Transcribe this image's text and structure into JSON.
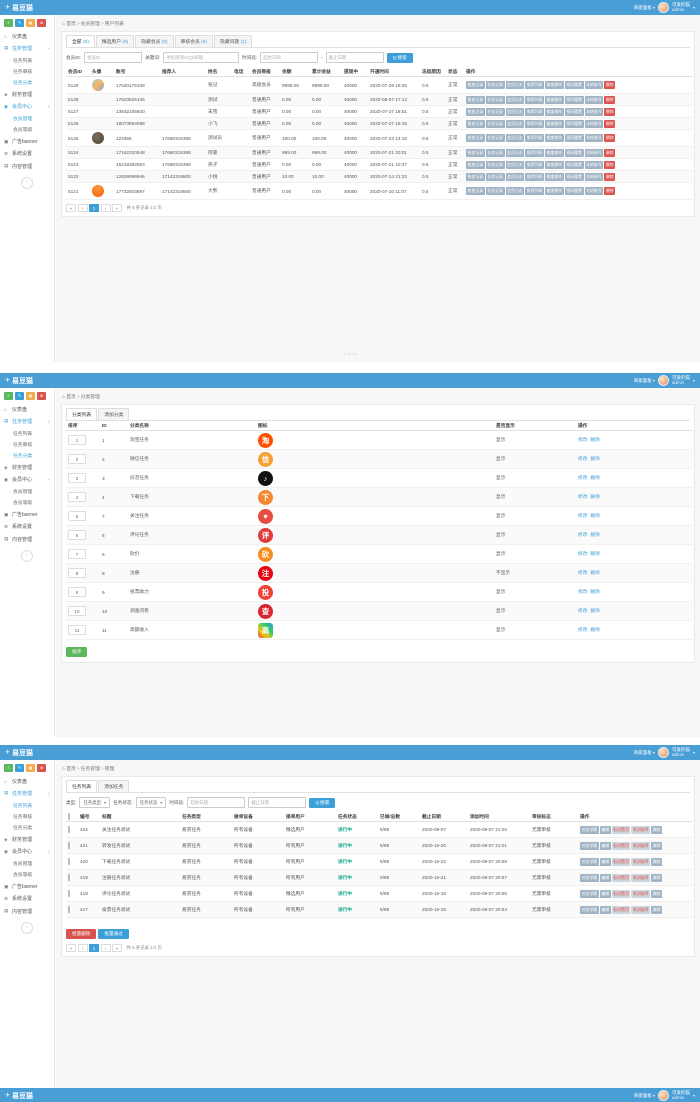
{
  "colors": {
    "navbar": "#4a9ed6",
    "accent_blue": "#3c9fd8",
    "green": "#5cb85c",
    "red": "#d9534f",
    "slate_button": "#9fb3c4",
    "badge_green": "#18a689"
  },
  "navbar": {
    "logo": "易豆猫",
    "logo_icon": "paper-plane-icon",
    "merchant_menu": "商家面板",
    "user_name": "可爱的猫",
    "user_role": "admin"
  },
  "sidebar": {
    "quick_buttons": [
      {
        "name": "menu",
        "glyph": "≡",
        "color": "#5cb85c"
      },
      {
        "name": "edit",
        "glyph": "✎",
        "color": "#3c9fd8"
      },
      {
        "name": "apps",
        "glyph": "▦",
        "color": "#f0ad4e"
      },
      {
        "name": "power",
        "glyph": "⊗",
        "color": "#d9534f"
      }
    ],
    "items": [
      {
        "label": "仪表盘",
        "glyph": "⌂",
        "children": []
      },
      {
        "label": "任务管理",
        "glyph": "▤",
        "children": [
          "任务列表",
          "任务审核",
          "任务分类"
        ]
      },
      {
        "label": "财务管理",
        "glyph": "◈",
        "children": []
      },
      {
        "label": "会员中心",
        "glyph": "◉",
        "children": [
          "会员管理",
          "会员等级"
        ]
      },
      {
        "label": "广告banner",
        "glyph": "▣",
        "children": []
      },
      {
        "label": "系统设置",
        "glyph": "⚙",
        "children": []
      },
      {
        "label": "内容管理",
        "glyph": "▤",
        "children": []
      }
    ],
    "collapse_glyph": "‹"
  },
  "panels": [
    {
      "name": "user-list",
      "breadcrumb": [
        "首页",
        "会员管理",
        "用户列表"
      ],
      "expanded": [
        "任务管理",
        "会员中心"
      ],
      "blue_parents": [
        "任务管理",
        "会员中心"
      ],
      "current_child": "会员管理",
      "also_blue_child": "任务分类",
      "tabs": [
        {
          "label": "全部",
          "count": "(9)",
          "active": true
        },
        {
          "label": "精选用户",
          "count": "(8)",
          "active": false
        },
        {
          "label": "隐藏会员",
          "count": "(0)",
          "active": false
        },
        {
          "label": "审核会员",
          "count": "(9)",
          "active": false
        },
        {
          "label": "隐藏问题",
          "count": "(1)",
          "active": false
        }
      ],
      "filters": {
        "id_label": "会员ID:",
        "id_placeholder": "会员ID",
        "kw_label": "关键词:",
        "kw_placeholder": "手机/昵称/QQ/邮箱",
        "time_label": "时间段:",
        "time_from": "起始日期",
        "time_to": "截止日期",
        "search_label": "搜索",
        "search_icon": "Q"
      },
      "columns": [
        "会员ID",
        "头像",
        "账号",
        "推荐人",
        "姓名",
        "电话",
        "会员等级",
        "余额",
        "累计收益",
        "提现中",
        "开通时间",
        "冻结原因",
        "状态",
        "操作"
      ],
      "actions": [
        "账变记录",
        "任务记录",
        "会员日志",
        "推荐列表",
        "额度操作",
        "密码重置",
        "冻结账号",
        "删除"
      ],
      "rows": [
        {
          "id": "5129",
          "avatar": "colorful",
          "account": "17620175348",
          "referrer": "",
          "name": "张记",
          "phone": "",
          "level": "高级会员",
          "balance": "9999.00",
          "total": "9999.00",
          "withdraw": "40000",
          "time": "2020-07-28 18:45",
          "freeze": "0.5",
          "status": "正常"
        },
        {
          "id": "5128",
          "avatar": "",
          "account": "17623525136",
          "referrer": "",
          "name": "测试",
          "phone": "",
          "level": "普通用户",
          "balance": "0.00",
          "total": "0.00",
          "withdraw": "40000",
          "time": "2020-08-07 17:12",
          "freeze": "0.5",
          "status": "正常"
        },
        {
          "id": "5127",
          "avatar": "",
          "account": "13932105840",
          "referrer": "",
          "name": "末雪",
          "phone": "",
          "level": "普通用户",
          "balance": "0.00",
          "total": "0.00",
          "withdraw": "40000",
          "time": "2020-07-27 18:51",
          "freeze": "0.5",
          "status": "正常"
        },
        {
          "id": "5126",
          "avatar": "",
          "account": "18073894098",
          "referrer": "",
          "name": "小飞",
          "phone": "",
          "level": "普通用户",
          "balance": "0.00",
          "total": "0.00",
          "withdraw": "40000",
          "time": "2020-07-27 18:15",
          "freeze": "0.5",
          "status": "正常"
        },
        {
          "id": "5125",
          "avatar": "dark",
          "account": "123456",
          "referrer": "17680315388",
          "name": "测试员",
          "phone": "",
          "level": "普通用户",
          "balance": "100.00",
          "total": "100.00",
          "withdraw": "40000",
          "time": "2020-07-23 14:15",
          "freeze": "0.5",
          "status": "正常"
        },
        {
          "id": "5124",
          "avatar": "",
          "account": "17162310548",
          "referrer": "17680315388",
          "name": "阿豪",
          "phone": "",
          "level": "普通用户",
          "balance": "999.00",
          "total": "999.00",
          "withdraw": "40000",
          "time": "2020-07-21 20:01",
          "freeze": "0.5",
          "status": "正常"
        },
        {
          "id": "5123",
          "avatar": "",
          "account": "15218382553",
          "referrer": "17680315388",
          "name": "燕子",
          "phone": "",
          "level": "普通用户",
          "balance": "0.00",
          "total": "0.00",
          "withdraw": "40000",
          "time": "2020-07-21 10:37",
          "freeze": "0.5",
          "status": "正常"
        },
        {
          "id": "5122",
          "avatar": "",
          "account": "12629999946",
          "referrer": "17142319500",
          "name": "小悦",
          "phone": "",
          "level": "普通用户",
          "balance": "10.00",
          "total": "10.00",
          "withdraw": "40000",
          "time": "2020-07-14 21:22",
          "freeze": "0.5",
          "status": "正常"
        },
        {
          "id": "5121",
          "avatar": "orange",
          "account": "17732933697",
          "referrer": "17142319500",
          "name": "大熊",
          "phone": "",
          "level": "普通用户",
          "balance": "0.00",
          "total": "0.00",
          "withdraw": "40000",
          "time": "2020-07-10 11:07",
          "freeze": "0.5",
          "status": "正常"
        }
      ],
      "pager": {
        "first": "«",
        "prev": "‹",
        "page": "1",
        "next": "›",
        "last": "»",
        "total": "共 9 条记录 1/1 页"
      },
      "mini_pager": "« ‹ 1 › »"
    },
    {
      "name": "category-list",
      "breadcrumb": [
        "首页",
        "分类管理"
      ],
      "expanded": [
        "任务管理",
        "会员中心"
      ],
      "blue_parents": [
        "任务管理"
      ],
      "current_child": "任务分类",
      "also_blue_child": "",
      "tabs": [
        {
          "label": "分类列表",
          "count": "",
          "active": true
        },
        {
          "label": "添加分类",
          "count": "",
          "active": false
        }
      ],
      "columns": [
        "排序",
        "ID",
        "分类名称",
        "图标",
        "是否显示",
        "操作"
      ],
      "ops": [
        "修改",
        "删除"
      ],
      "rows": [
        {
          "sort": "1",
          "id": "1",
          "name": "淘宝任务",
          "icon": {
            "glyph": "淘",
            "bg": "#ff5000",
            "shape": "circle",
            "sem": "taobao-icon"
          },
          "show": "显示"
        },
        {
          "sort": "2",
          "id": "2",
          "name": "微信任务",
          "icon": {
            "glyph": "信",
            "bg": "#f7a034",
            "shape": "circle",
            "sem": "wechat-icon"
          },
          "show": "显示"
        },
        {
          "sort": "3",
          "id": "3",
          "name": "抖音任务",
          "icon": {
            "glyph": "♪",
            "bg": "#111111",
            "shape": "circle",
            "sem": "douyin-icon"
          },
          "show": "显示"
        },
        {
          "sort": "4",
          "id": "4",
          "name": "下载任务",
          "icon": {
            "glyph": "下",
            "bg": "#f7882f",
            "shape": "circle",
            "sem": "download-app-icon"
          },
          "show": "显示"
        },
        {
          "sort": "5",
          "id": "7",
          "name": "关注任务",
          "icon": {
            "glyph": "♥",
            "bg": "#e54d42",
            "shape": "circle",
            "sem": "follow-icon"
          },
          "show": "显示"
        },
        {
          "sort": "6",
          "id": "5",
          "name": "评论任务",
          "icon": {
            "glyph": "评",
            "bg": "#e03c3c",
            "shape": "circle",
            "sem": "comment-icon"
          },
          "show": "显示"
        },
        {
          "sort": "7",
          "id": "6",
          "name": "砍价",
          "icon": {
            "glyph": "砍",
            "bg": "#f78c1e",
            "shape": "circle",
            "sem": "bargain-icon"
          },
          "show": "显示"
        },
        {
          "sort": "8",
          "id": "8",
          "name": "注册",
          "icon": {
            "glyph": "注",
            "bg": "#e60012",
            "shape": "circle",
            "sem": "register-icon"
          },
          "show": "不显示"
        },
        {
          "sort": "9",
          "id": "9",
          "name": "投票助力",
          "icon": {
            "glyph": "投",
            "bg": "#ef4136",
            "shape": "circle",
            "sem": "vote-icon"
          },
          "show": "显示"
        },
        {
          "sort": "10",
          "id": "10",
          "name": "调查问卷",
          "icon": {
            "glyph": "查",
            "bg": "#d9262c",
            "shape": "circle",
            "sem": "survey-icon"
          },
          "show": "显示"
        },
        {
          "sort": "11",
          "id": "11",
          "name": "高额收入",
          "icon": {
            "glyph": "高",
            "bg": "linear-gradient(45deg,#e74c3c,#f1c40f,#2ecc71,#3498db)",
            "shape": "square",
            "sem": "high-reward-icon"
          },
          "show": "显示"
        }
      ],
      "sort_button": "排序"
    },
    {
      "name": "task-list",
      "breadcrumb": [
        "首页",
        "任务管理",
        "管理"
      ],
      "expanded": [
        "任务管理",
        "会员中心"
      ],
      "blue_parents": [
        "任务管理"
      ],
      "current_child": "任务列表",
      "also_blue_child": "",
      "tabs": [
        {
          "label": "任务列表",
          "count": "",
          "active": true
        },
        {
          "label": "添加任务",
          "count": "",
          "active": false
        }
      ],
      "filters": {
        "type_label": "类型:",
        "type_value": "任务类型",
        "state_label": "任务状态:",
        "state_value": "任务状态",
        "time_label": "时间段:",
        "time_from": "起始日期",
        "time_to": "截止日期",
        "search_label": "搜索",
        "search_icon": "Q"
      },
      "columns": [
        "",
        "编号",
        "标题",
        "任务类型",
        "做单设备",
        "接单用户",
        "任务状态",
        "已做/总数",
        "截止日期",
        "添加时间",
        "审核标志",
        "操作"
      ],
      "actions": [
        {
          "label": "任务详情",
          "style": "slate"
        },
        {
          "label": "编辑",
          "style": "slate"
        },
        {
          "label": "取消置顶",
          "style": "grayred"
        },
        {
          "label": "取消推荐",
          "style": "grayred"
        },
        {
          "label": "删除",
          "style": "slate"
        }
      ],
      "rows": [
        {
          "no": "422",
          "title": "关注任务测试",
          "type": "悬赏任务",
          "device": "所有设备",
          "user": "精选用户",
          "state": "进行中",
          "count": "5/98",
          "deadline": "2020-09-07",
          "added": "2020-09-07 21:02",
          "audit": "无需审核"
        },
        {
          "no": "421",
          "title": "转发任务测试",
          "type": "悬赏任务",
          "device": "所有设备",
          "user": "所有用户",
          "state": "进行中",
          "count": "5/98",
          "deadline": "2020-10-20",
          "added": "2020-09-07 21:01",
          "audit": "无需审核"
        },
        {
          "no": "420",
          "title": "下载任务测试",
          "type": "悬赏任务",
          "device": "所有设备",
          "user": "所有用户",
          "state": "进行中",
          "count": "5/98",
          "deadline": "2020-10-22",
          "added": "2020-09-07 20:58",
          "audit": "无需审核"
        },
        {
          "no": "419",
          "title": "注册任务测试",
          "type": "悬赏任务",
          "device": "所有设备",
          "user": "所有用户",
          "state": "进行中",
          "count": "0/98",
          "deadline": "2020-10-21",
          "added": "2020-09-07 20:57",
          "audit": "无需审核"
        },
        {
          "no": "418",
          "title": "评论任务测试",
          "type": "悬赏任务",
          "device": "所有设备",
          "user": "精选用户",
          "state": "进行中",
          "count": "5/98",
          "deadline": "2020-10-18",
          "added": "2020-09-07 20:55",
          "audit": "无需审核"
        },
        {
          "no": "417",
          "title": "投票任务测试",
          "type": "悬赏任务",
          "device": "所有设备",
          "user": "所有用户",
          "state": "进行中",
          "count": "5/98",
          "deadline": "2020-10-15",
          "added": "2020-09-07 20:54",
          "audit": "无需审核"
        }
      ],
      "batch_buttons": [
        {
          "label": "批量删除",
          "style": "red-bg"
        },
        {
          "label": "批量通过",
          "style": "blue-bg"
        }
      ],
      "pager": {
        "first": "«",
        "prev": "‹",
        "page": "1",
        "next": "›",
        "last": "»",
        "total": "共 6 条记录 1/1 页"
      }
    }
  ],
  "panel4_partial": {
    "note": "partial navbar of next screenshot"
  }
}
